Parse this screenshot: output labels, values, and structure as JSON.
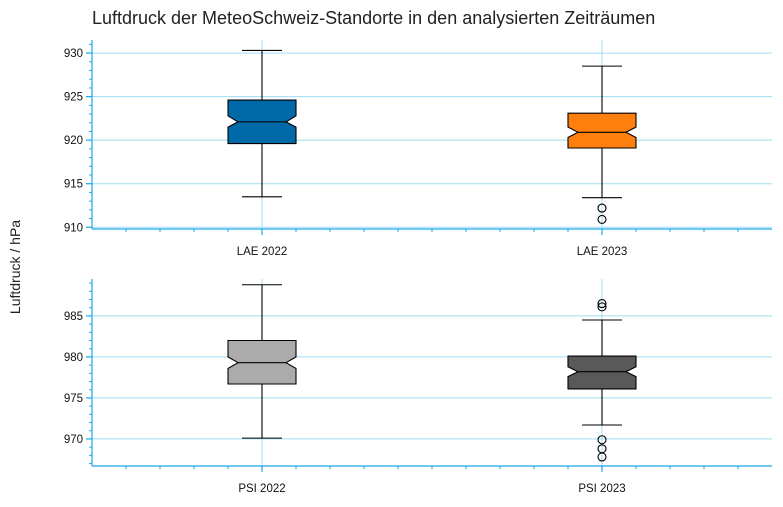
{
  "chart_data": {
    "title": "Luftdruck der MeteoSchweiz-Standorte in den analysierten Zeiträumen",
    "ylabel": "Luftdruck / hPa",
    "axis_color": "#1aa7ec",
    "grid_color": "#9fdcf3",
    "panels": [
      {
        "type": "boxplot",
        "notched": true,
        "grid": true,
        "ylim": [
          909.8,
          931.5
        ],
        "yticks": [
          910,
          915,
          920,
          925,
          930
        ],
        "series": [
          {
            "category": "LAE 2022",
            "color": "#0069a8",
            "whisker_low": 913.5,
            "q1": 919.6,
            "median": 922.1,
            "q3": 924.6,
            "whisker_high": 930.3,
            "notch_low": 921.5,
            "notch_high": 922.8,
            "outliers": []
          },
          {
            "category": "LAE 2023",
            "color": "#ff7f0e",
            "whisker_low": 913.4,
            "q1": 919.1,
            "median": 920.9,
            "q3": 923.1,
            "whisker_high": 928.5,
            "notch_low": 920.3,
            "notch_high": 921.5,
            "outliers": [
              912.2,
              910.9
            ]
          }
        ]
      },
      {
        "type": "boxplot",
        "notched": true,
        "grid": true,
        "ylim": [
          966.7,
          989.5
        ],
        "yticks": [
          970,
          975,
          980,
          985
        ],
        "series": [
          {
            "category": "PSI 2022",
            "color": "#ababab",
            "whisker_low": 970.1,
            "q1": 976.7,
            "median": 979.3,
            "q3": 982.0,
            "whisker_high": 988.8,
            "notch_low": 978.6,
            "notch_high": 980.0,
            "outliers": []
          },
          {
            "category": "PSI 2023",
            "color": "#595959",
            "whisker_low": 971.7,
            "q1": 976.1,
            "median": 978.2,
            "q3": 980.1,
            "whisker_high": 984.5,
            "notch_low": 977.6,
            "notch_high": 978.8,
            "outliers": [
              986.5,
              986.1,
              969.9,
              968.8,
              967.8
            ]
          }
        ]
      }
    ]
  }
}
